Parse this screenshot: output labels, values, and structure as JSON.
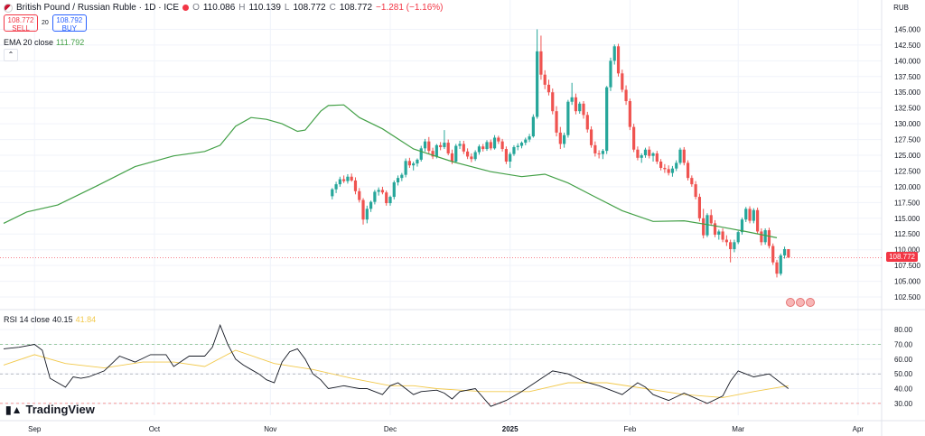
{
  "header": {
    "symbol": "British Pound / Russian Ruble · 1D · ICE",
    "o_label": "O",
    "o": "110.086",
    "h_label": "H",
    "h": "110.139",
    "l_label": "L",
    "l": "108.772",
    "c_label": "C",
    "c": "108.772",
    "change": "−1.281 (−1.16%)"
  },
  "trade": {
    "sell_price": "108.772",
    "sell_label": "SELL",
    "spread": "20",
    "buy_price": "108.792",
    "buy_label": "BUY"
  },
  "ema": {
    "label": "EMA 20 close",
    "value": "111.792"
  },
  "rsi": {
    "label": "RSI 14 close",
    "value": "40.15",
    "ma_value": "41.84"
  },
  "currency": "RUB",
  "last_price_tag": "108.772",
  "logo_text": "TradingView",
  "colors": {
    "up": "#26a69a",
    "down": "#ef5350",
    "ema": "#43a047",
    "rsi": "#131722",
    "rsi_ma": "#f2c94c"
  },
  "chart_data": [
    {
      "type": "candlestick",
      "x_tick_labels": [
        "Sep",
        "Oct",
        "Nov",
        "Dec",
        "2025",
        "Feb",
        "Mar",
        "Apr"
      ],
      "x_tick_pos": [
        8,
        39,
        69,
        100,
        131,
        162,
        190,
        221
      ],
      "y_ticks": [
        102.5,
        105.0,
        107.5,
        110.0,
        112.5,
        115.0,
        117.5,
        120.0,
        122.5,
        125.0,
        127.5,
        130.0,
        132.5,
        135.0,
        137.5,
        140.0,
        142.5,
        145.0
      ],
      "ylim": [
        101.5,
        146.5
      ],
      "last_day": 203,
      "ohlc": [
        [
          118.5,
          119.8,
          118.0,
          119.6
        ],
        [
          119.6,
          120.8,
          119.0,
          120.4
        ],
        [
          120.4,
          121.6,
          120.0,
          121.2
        ],
        [
          121.2,
          121.8,
          120.6,
          120.9
        ],
        [
          120.9,
          122.0,
          120.5,
          121.6
        ],
        [
          121.6,
          122.1,
          120.8,
          121.0
        ],
        [
          121.0,
          121.5,
          118.8,
          119.3
        ],
        [
          119.3,
          119.8,
          117.5,
          117.9
        ],
        [
          117.9,
          118.2,
          114.0,
          114.8
        ],
        [
          114.8,
          117.0,
          114.2,
          116.5
        ],
        [
          116.5,
          117.8,
          116.0,
          117.6
        ],
        [
          117.6,
          119.5,
          117.2,
          119.2
        ],
        [
          119.2,
          119.9,
          118.6,
          119.5
        ],
        [
          119.5,
          120.0,
          118.8,
          119.1
        ],
        [
          119.1,
          119.4,
          117.0,
          117.4
        ],
        [
          117.4,
          118.6,
          117.0,
          118.4
        ],
        [
          118.4,
          121.0,
          118.0,
          120.7
        ],
        [
          120.7,
          121.8,
          120.2,
          121.4
        ],
        [
          121.4,
          122.2,
          120.9,
          121.9
        ],
        [
          121.9,
          124.5,
          121.5,
          124.1
        ],
        [
          124.1,
          124.6,
          123.0,
          123.4
        ],
        [
          123.4,
          124.0,
          122.6,
          123.7
        ],
        [
          123.7,
          124.5,
          123.2,
          124.3
        ],
        [
          124.3,
          126.5,
          124.0,
          126.1
        ],
        [
          126.1,
          127.6,
          125.6,
          127.2
        ],
        [
          127.2,
          127.9,
          125.3,
          125.7
        ],
        [
          125.7,
          126.2,
          124.4,
          124.8
        ],
        [
          124.8,
          126.8,
          124.5,
          126.6
        ],
        [
          126.6,
          127.1,
          125.8,
          126.3
        ],
        [
          126.3,
          129.0,
          126.0,
          127.0
        ],
        [
          127.0,
          127.5,
          125.0,
          125.3
        ],
        [
          125.3,
          125.9,
          123.6,
          124.0
        ],
        [
          124.0,
          126.8,
          123.8,
          126.5
        ],
        [
          126.5,
          127.3,
          126.0,
          126.8
        ],
        [
          126.8,
          127.3,
          125.2,
          125.6
        ],
        [
          125.6,
          126.1,
          124.4,
          124.8
        ],
        [
          124.8,
          125.3,
          123.9,
          124.4
        ],
        [
          124.4,
          125.8,
          124.1,
          125.5
        ],
        [
          125.5,
          126.7,
          125.1,
          126.4
        ],
        [
          126.4,
          126.8,
          125.6,
          126.0
        ],
        [
          126.0,
          127.4,
          125.7,
          127.1
        ],
        [
          127.1,
          127.5,
          125.8,
          126.1
        ],
        [
          126.1,
          128.2,
          125.9,
          127.8
        ],
        [
          127.8,
          128.1,
          126.8,
          127.2
        ],
        [
          127.2,
          127.6,
          125.6,
          126.0
        ],
        [
          126.0,
          126.4,
          123.6,
          124.0
        ],
        [
          124.0,
          125.5,
          123.0,
          125.2
        ],
        [
          125.2,
          126.6,
          124.9,
          126.3
        ],
        [
          126.3,
          126.9,
          125.8,
          126.5
        ],
        [
          126.5,
          127.2,
          126.1,
          127.0
        ],
        [
          127.0,
          127.8,
          126.6,
          127.5
        ],
        [
          127.5,
          128.4,
          127.1,
          128.0
        ],
        [
          128.0,
          131.5,
          127.8,
          131.1
        ],
        [
          131.1,
          145.0,
          130.8,
          141.5
        ],
        [
          141.5,
          144.0,
          137.0,
          137.8
        ],
        [
          137.8,
          138.5,
          135.5,
          136.2
        ],
        [
          136.2,
          137.0,
          134.5,
          135.0
        ],
        [
          135.0,
          135.6,
          131.5,
          132.0
        ],
        [
          132.0,
          132.8,
          128.0,
          128.6
        ],
        [
          128.6,
          129.5,
          126.0,
          126.8
        ],
        [
          126.8,
          128.6,
          126.2,
          128.2
        ],
        [
          128.2,
          133.8,
          127.8,
          133.5
        ],
        [
          133.5,
          136.5,
          133.0,
          134.2
        ],
        [
          134.2,
          134.8,
          131.5,
          132.0
        ],
        [
          132.0,
          133.5,
          131.6,
          133.2
        ],
        [
          133.2,
          133.6,
          130.8,
          131.4
        ],
        [
          131.4,
          131.9,
          128.6,
          129.1
        ],
        [
          129.1,
          129.6,
          126.2,
          126.6
        ],
        [
          126.6,
          127.2,
          124.8,
          125.3
        ],
        [
          125.3,
          125.8,
          124.5,
          125.2
        ],
        [
          125.2,
          126.0,
          124.4,
          125.7
        ],
        [
          125.7,
          136.0,
          125.2,
          135.8
        ],
        [
          135.8,
          140.5,
          135.2,
          140.0
        ],
        [
          140.0,
          142.6,
          139.4,
          142.3
        ],
        [
          142.3,
          142.7,
          137.5,
          138.0
        ],
        [
          138.0,
          138.6,
          135.0,
          135.4
        ],
        [
          135.4,
          136.1,
          133.0,
          133.6
        ],
        [
          133.6,
          134.0,
          129.0,
          129.5
        ],
        [
          129.5,
          130.0,
          125.5,
          125.9
        ],
        [
          125.9,
          126.4,
          124.2,
          124.6
        ],
        [
          124.6,
          125.3,
          123.8,
          125.0
        ],
        [
          125.0,
          126.2,
          124.6,
          125.9
        ],
        [
          125.9,
          126.4,
          124.5,
          124.9
        ],
        [
          124.9,
          125.5,
          124.0,
          125.3
        ],
        [
          125.3,
          125.7,
          123.6,
          124.0
        ],
        [
          124.0,
          124.4,
          122.6,
          123.0
        ],
        [
          123.0,
          123.6,
          122.2,
          122.8
        ],
        [
          122.8,
          123.4,
          121.8,
          122.2
        ],
        [
          122.2,
          123.3,
          121.6,
          122.9
        ],
        [
          122.9,
          124.2,
          122.5,
          123.8
        ],
        [
          123.8,
          126.2,
          123.5,
          125.9
        ],
        [
          125.9,
          126.3,
          123.4,
          123.8
        ],
        [
          123.8,
          124.2,
          121.0,
          121.4
        ],
        [
          121.4,
          121.8,
          120.0,
          120.4
        ],
        [
          120.4,
          120.9,
          118.0,
          118.4
        ],
        [
          118.4,
          118.9,
          114.5,
          115.0
        ],
        [
          115.0,
          116.5,
          111.8,
          112.3
        ],
        [
          112.3,
          115.8,
          112.0,
          115.5
        ],
        [
          115.5,
          116.4,
          113.8,
          114.2
        ],
        [
          114.2,
          114.7,
          112.0,
          112.4
        ],
        [
          112.4,
          113.2,
          111.6,
          112.9
        ],
        [
          112.9,
          113.4,
          111.2,
          111.6
        ],
        [
          111.6,
          112.3,
          110.6,
          111.2
        ],
        [
          111.2,
          111.6,
          108.0,
          110.1
        ],
        [
          110.1,
          111.6,
          109.6,
          111.2
        ],
        [
          111.2,
          113.0,
          110.9,
          112.8
        ],
        [
          112.8,
          115.1,
          112.4,
          114.8
        ],
        [
          114.8,
          116.8,
          114.4,
          116.5
        ],
        [
          116.5,
          116.9,
          114.2,
          114.6
        ],
        [
          114.6,
          116.6,
          114.2,
          116.3
        ],
        [
          116.3,
          116.7,
          112.5,
          112.9
        ],
        [
          112.9,
          113.4,
          110.7,
          111.2
        ],
        [
          111.2,
          113.4,
          110.8,
          113.1
        ],
        [
          113.1,
          113.5,
          110.2,
          110.6
        ],
        [
          110.6,
          111.0,
          107.6,
          108.0
        ],
        [
          108.0,
          108.4,
          105.6,
          106.2
        ],
        [
          106.2,
          109.4,
          105.9,
          109.1
        ],
        [
          109.1,
          110.5,
          108.6,
          110.1
        ],
        [
          110.1,
          110.1,
          108.7,
          108.77
        ]
      ],
      "ema20": [
        [
          0,
          114.2
        ],
        [
          6,
          116.0
        ],
        [
          14,
          117.1
        ],
        [
          24,
          120.1
        ],
        [
          34,
          123.2
        ],
        [
          44,
          124.9
        ],
        [
          52,
          125.6
        ],
        [
          56,
          126.6
        ],
        [
          60,
          129.6
        ],
        [
          64,
          131.0
        ],
        [
          68,
          130.7
        ],
        [
          72,
          130.0
        ],
        [
          76,
          128.8
        ],
        [
          78,
          129.0
        ],
        [
          82,
          132.0
        ],
        [
          84,
          132.9
        ],
        [
          88,
          133.0
        ],
        [
          92,
          131.0
        ],
        [
          98,
          129.2
        ],
        [
          106,
          126.0
        ],
        [
          116,
          124.0
        ],
        [
          126,
          122.4
        ],
        [
          134,
          121.6
        ],
        [
          140,
          122.0
        ],
        [
          146,
          120.6
        ],
        [
          152,
          118.7
        ],
        [
          160,
          116.2
        ],
        [
          168,
          114.5
        ],
        [
          176,
          114.6
        ],
        [
          184,
          113.8
        ],
        [
          192,
          112.9
        ],
        [
          200,
          111.9
        ]
      ]
    },
    {
      "type": "line",
      "name": "RSI",
      "y_ticks": [
        30.0,
        40.0,
        50.0,
        60.0,
        70.0,
        80.0
      ],
      "ylim": [
        22,
        88
      ],
      "bands": [
        70,
        50,
        30
      ],
      "rsi": [
        [
          0,
          67
        ],
        [
          4,
          68
        ],
        [
          8,
          70
        ],
        [
          10,
          66
        ],
        [
          12,
          47
        ],
        [
          16,
          41
        ],
        [
          18,
          48
        ],
        [
          20,
          47
        ],
        [
          22,
          48
        ],
        [
          26,
          52
        ],
        [
          30,
          62
        ],
        [
          34,
          58
        ],
        [
          38,
          63
        ],
        [
          42,
          63
        ],
        [
          44,
          55
        ],
        [
          48,
          62
        ],
        [
          52,
          62
        ],
        [
          54,
          68
        ],
        [
          56,
          83
        ],
        [
          58,
          70
        ],
        [
          60,
          60
        ],
        [
          62,
          56
        ],
        [
          64,
          53
        ],
        [
          66,
          50
        ],
        [
          68,
          46
        ],
        [
          70,
          44
        ],
        [
          72,
          58
        ],
        [
          74,
          65
        ],
        [
          76,
          67
        ],
        [
          78,
          60
        ],
        [
          80,
          50
        ],
        [
          82,
          46
        ],
        [
          84,
          40
        ],
        [
          86,
          41
        ],
        [
          88,
          42
        ],
        [
          90,
          41
        ],
        [
          92,
          40
        ],
        [
          94,
          40
        ],
        [
          96,
          38
        ],
        [
          98,
          36
        ],
        [
          100,
          42
        ],
        [
          102,
          44
        ],
        [
          104,
          40
        ],
        [
          106,
          36
        ],
        [
          108,
          38
        ],
        [
          112,
          39
        ],
        [
          114,
          37
        ],
        [
          116,
          33
        ],
        [
          118,
          38
        ],
        [
          122,
          40
        ],
        [
          126,
          28
        ],
        [
          130,
          32
        ],
        [
          134,
          38
        ],
        [
          138,
          45
        ],
        [
          142,
          52
        ],
        [
          146,
          50
        ],
        [
          150,
          45
        ],
        [
          154,
          42
        ],
        [
          158,
          38
        ],
        [
          160,
          36
        ],
        [
          164,
          44
        ],
        [
          166,
          41
        ],
        [
          168,
          36
        ],
        [
          170,
          34
        ],
        [
          172,
          32
        ],
        [
          176,
          37
        ],
        [
          182,
          30
        ],
        [
          186,
          35
        ],
        [
          188,
          45
        ],
        [
          190,
          52
        ],
        [
          194,
          48
        ],
        [
          198,
          50
        ],
        [
          203,
          40
        ]
      ],
      "rsi_ma": [
        [
          0,
          56
        ],
        [
          8,
          63
        ],
        [
          16,
          57
        ],
        [
          26,
          54
        ],
        [
          36,
          58
        ],
        [
          44,
          58
        ],
        [
          52,
          55
        ],
        [
          60,
          66
        ],
        [
          70,
          57
        ],
        [
          80,
          53
        ],
        [
          90,
          47
        ],
        [
          100,
          42
        ],
        [
          106,
          42
        ],
        [
          112,
          40
        ],
        [
          118,
          39
        ],
        [
          124,
          38
        ],
        [
          130,
          38
        ],
        [
          136,
          38
        ],
        [
          146,
          44
        ],
        [
          156,
          44
        ],
        [
          166,
          40
        ],
        [
          176,
          36
        ],
        [
          186,
          34
        ],
        [
          194,
          38
        ],
        [
          203,
          42
        ]
      ]
    }
  ]
}
